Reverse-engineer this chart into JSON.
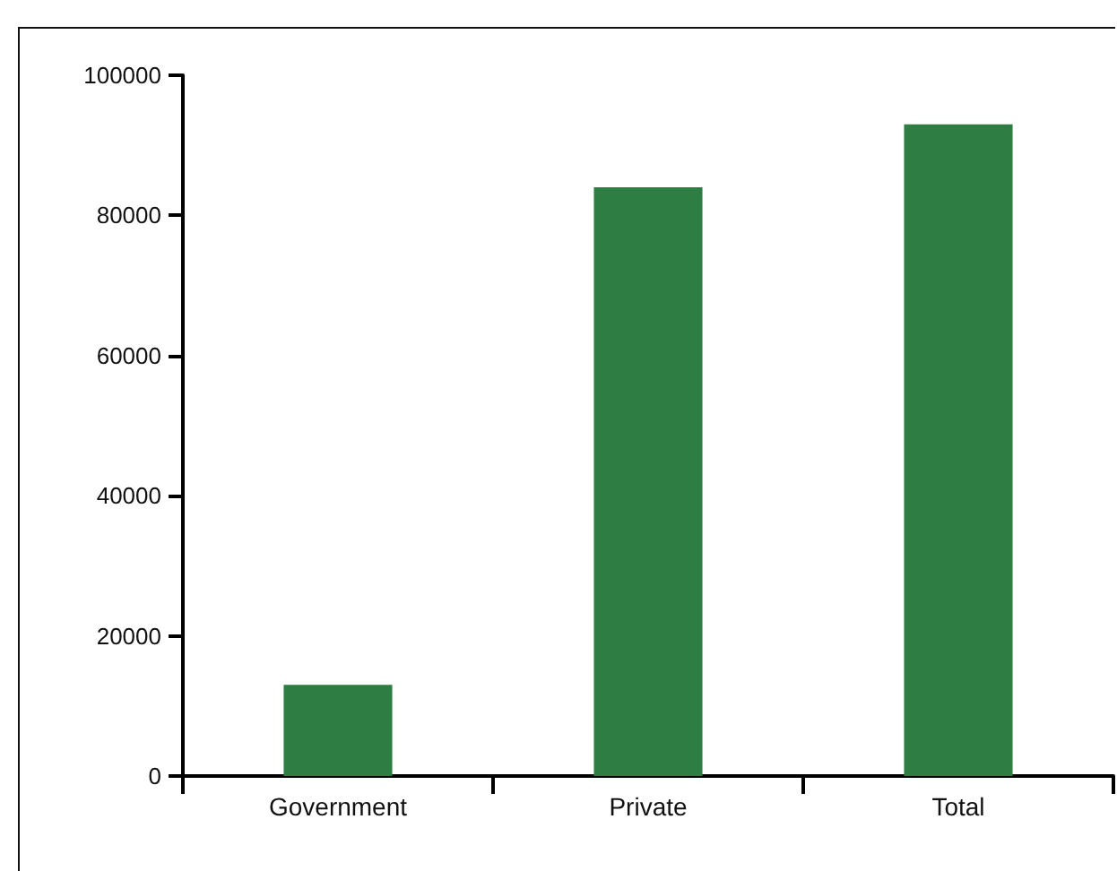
{
  "chart_data": {
    "type": "bar",
    "categories": [
      "Government",
      "Private",
      "Total"
    ],
    "values": [
      13000,
      84000,
      93000
    ],
    "color": "#2e7d42",
    "ylim": [
      0,
      100000
    ],
    "yticks": [
      0,
      20000,
      40000,
      60000,
      80000,
      100000
    ],
    "grid": false
  }
}
